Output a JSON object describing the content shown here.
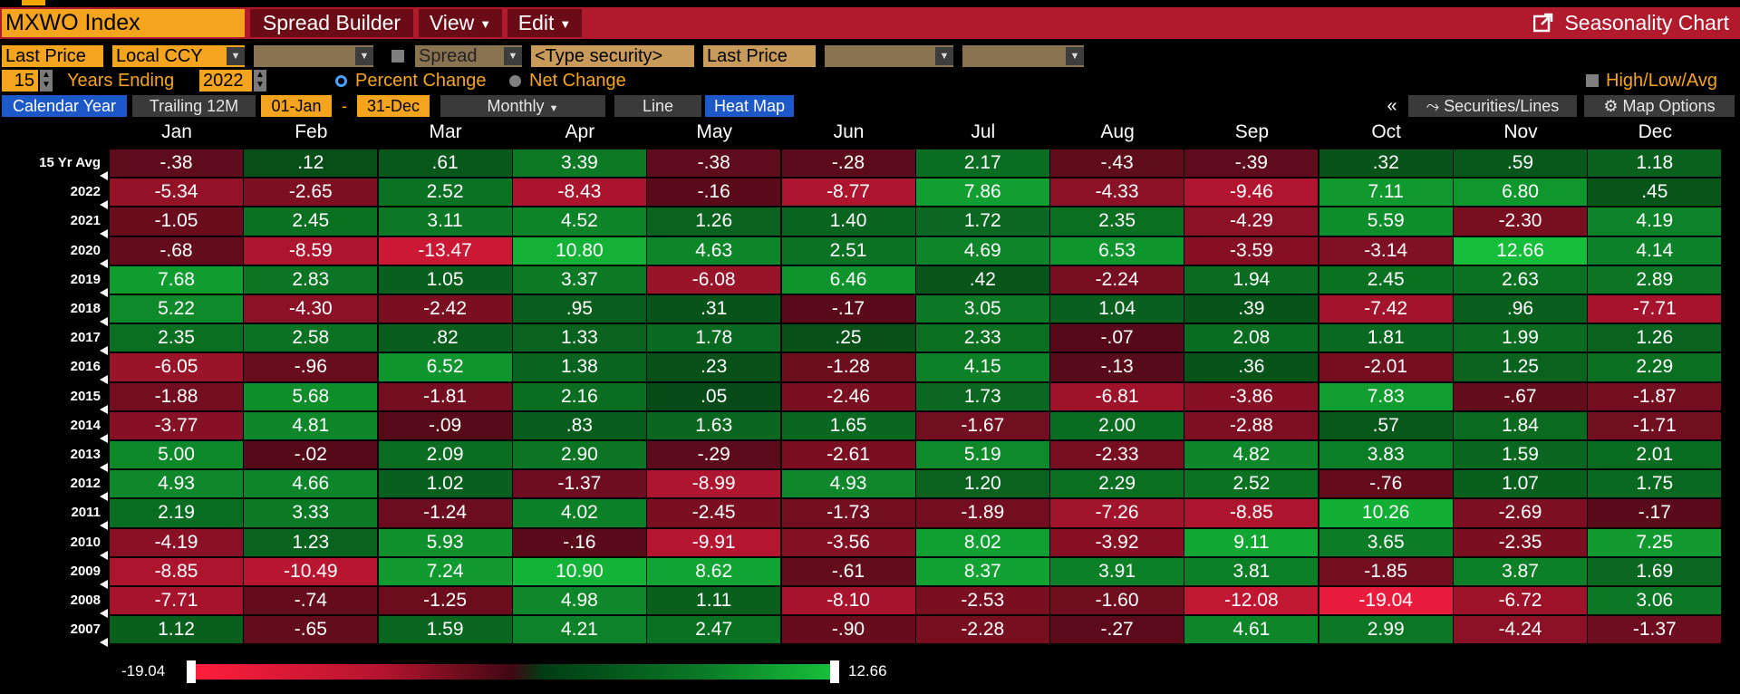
{
  "header": {
    "security": "MXWO Index",
    "spread_builder": "Spread Builder",
    "view": "View",
    "edit": "Edit",
    "title": "Seasonality Chart",
    "external_icon": "external-link-icon"
  },
  "controls": {
    "price_field": "Last Price",
    "currency": "Local CCY",
    "blank_dropdown_1": "",
    "spread_label": "Spread",
    "type_security_placeholder": "<Type security>",
    "price_field_2": "Last Price",
    "blank_dropdown_2": "",
    "blank_dropdown_3": "",
    "years_value": "15",
    "years_label": "Years Ending",
    "ending_year": "2022",
    "percent_change": "Percent Change",
    "net_change": "Net Change",
    "high_low_avg": "High/Low/Avg"
  },
  "tabs": {
    "calendar_year": "Calendar Year",
    "trailing_12m": "Trailing 12M",
    "start": "01-Jan",
    "dash": "-",
    "end": "31-Dec",
    "monthly": "Monthly",
    "line": "Line",
    "heat_map": "Heat Map",
    "collapse": "«",
    "securities_lines": "Securities/Lines",
    "map_options": "Map Options"
  },
  "heatmap": {
    "months": [
      "Jan",
      "Feb",
      "Mar",
      "Apr",
      "May",
      "Jun",
      "Jul",
      "Aug",
      "Sep",
      "Oct",
      "Nov",
      "Dec"
    ],
    "rows": [
      {
        "label": "15 Yr Avg",
        "values": [
          "-.38",
          ".12",
          ".61",
          "3.39",
          "-.38",
          "-.28",
          "2.17",
          "-.43",
          "-.39",
          ".32",
          ".59",
          "1.18"
        ]
      },
      {
        "label": "2022",
        "values": [
          "-5.34",
          "-2.65",
          "2.52",
          "-8.43",
          "-.16",
          "-8.77",
          "7.86",
          "-4.33",
          "-9.46",
          "7.11",
          "6.80",
          ".45"
        ]
      },
      {
        "label": "2021",
        "values": [
          "-1.05",
          "2.45",
          "3.11",
          "4.52",
          "1.26",
          "1.40",
          "1.72",
          "2.35",
          "-4.29",
          "5.59",
          "-2.30",
          "4.19"
        ]
      },
      {
        "label": "2020",
        "values": [
          "-.68",
          "-8.59",
          "-13.47",
          "10.80",
          "4.63",
          "2.51",
          "4.69",
          "6.53",
          "-3.59",
          "-3.14",
          "12.66",
          "4.14"
        ]
      },
      {
        "label": "2019",
        "values": [
          "7.68",
          "2.83",
          "1.05",
          "3.37",
          "-6.08",
          "6.46",
          ".42",
          "-2.24",
          "1.94",
          "2.45",
          "2.63",
          "2.89"
        ]
      },
      {
        "label": "2018",
        "values": [
          "5.22",
          "-4.30",
          "-2.42",
          ".95",
          ".31",
          "-.17",
          "3.05",
          "1.04",
          ".39",
          "-7.42",
          ".96",
          "-7.71"
        ]
      },
      {
        "label": "2017",
        "values": [
          "2.35",
          "2.58",
          ".82",
          "1.33",
          "1.78",
          ".25",
          "2.33",
          "-.07",
          "2.08",
          "1.81",
          "1.99",
          "1.26"
        ]
      },
      {
        "label": "2016",
        "values": [
          "-6.05",
          "-.96",
          "6.52",
          "1.38",
          ".23",
          "-1.28",
          "4.15",
          "-.13",
          ".36",
          "-2.01",
          "1.25",
          "2.29"
        ]
      },
      {
        "label": "2015",
        "values": [
          "-1.88",
          "5.68",
          "-1.81",
          "2.16",
          ".05",
          "-2.46",
          "1.73",
          "-6.81",
          "-3.86",
          "7.83",
          "-.67",
          "-1.87"
        ]
      },
      {
        "label": "2014",
        "values": [
          "-3.77",
          "4.81",
          "-.09",
          ".83",
          "1.63",
          "1.65",
          "-1.67",
          "2.00",
          "-2.88",
          ".57",
          "1.84",
          "-1.71"
        ]
      },
      {
        "label": "2013",
        "values": [
          "5.00",
          "-.02",
          "2.09",
          "2.90",
          "-.29",
          "-2.61",
          "5.19",
          "-2.33",
          "4.82",
          "3.83",
          "1.59",
          "2.01"
        ]
      },
      {
        "label": "2012",
        "values": [
          "4.93",
          "4.66",
          "1.02",
          "-1.37",
          "-8.99",
          "4.93",
          "1.20",
          "2.29",
          "2.52",
          "-.76",
          "1.07",
          "1.75"
        ]
      },
      {
        "label": "2011",
        "values": [
          "2.19",
          "3.33",
          "-1.24",
          "4.02",
          "-2.45",
          "-1.73",
          "-1.89",
          "-7.26",
          "-8.85",
          "10.26",
          "-2.69",
          "-.17"
        ]
      },
      {
        "label": "2010",
        "values": [
          "-4.19",
          "1.23",
          "5.93",
          "-.16",
          "-9.91",
          "-3.56",
          "8.02",
          "-3.92",
          "9.11",
          "3.65",
          "-2.35",
          "7.25"
        ]
      },
      {
        "label": "2009",
        "values": [
          "-8.85",
          "-10.49",
          "7.24",
          "10.90",
          "8.62",
          "-.61",
          "8.37",
          "3.91",
          "3.81",
          "-1.85",
          "3.87",
          "1.69"
        ]
      },
      {
        "label": "2008",
        "values": [
          "-7.71",
          "-.74",
          "-1.25",
          "4.98",
          "1.11",
          "-8.10",
          "-2.53",
          "-1.60",
          "-12.08",
          "-19.04",
          "-6.72",
          "3.06"
        ]
      },
      {
        "label": "2007",
        "values": [
          "1.12",
          "-.65",
          "1.59",
          "4.21",
          "2.47",
          "-.90",
          "-2.28",
          "-.27",
          "4.61",
          "2.99",
          "-4.24",
          "-1.37"
        ]
      }
    ]
  },
  "legend": {
    "min_label": "-19.04",
    "max_label": "12.66",
    "min": -19.04,
    "max": 12.66
  },
  "colors": {
    "header_red": "#b11a2c",
    "bloomberg_orange": "#f5a41e",
    "tab_blue": "#1d58c8",
    "neg_strong": "#ff1e3c",
    "pos_strong": "#17c03a"
  }
}
